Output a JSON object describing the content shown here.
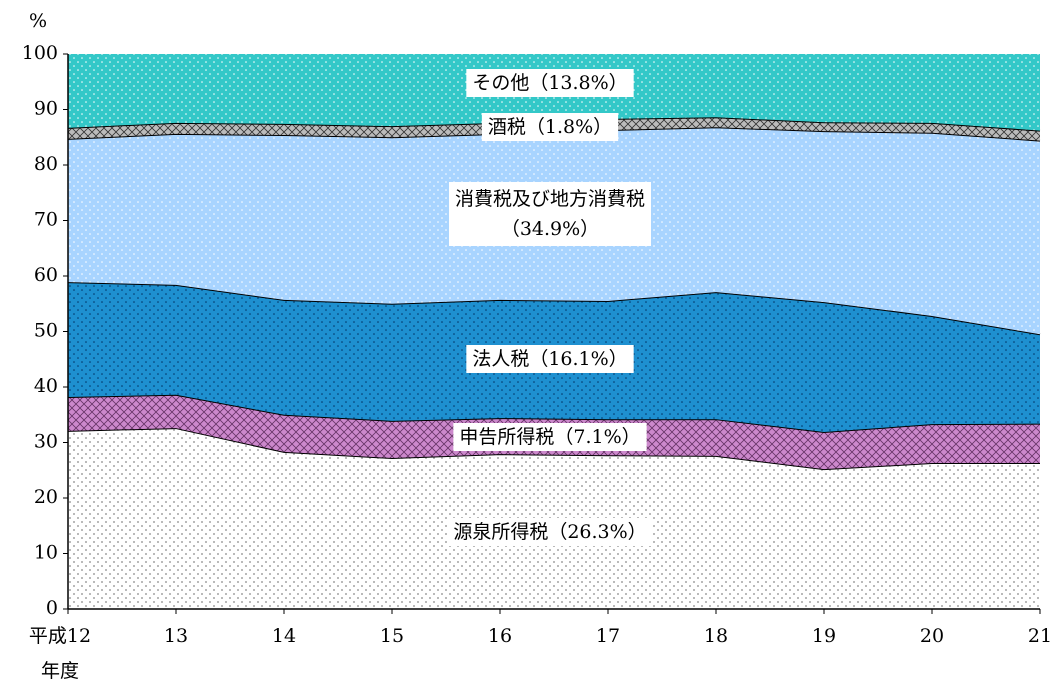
{
  "chart_data": {
    "type": "stacked_area",
    "y_label": "%",
    "x_label": "年度",
    "categories": [
      "平成12",
      "13",
      "14",
      "15",
      "16",
      "17",
      "18",
      "19",
      "20",
      "21"
    ],
    "series": [
      {
        "name": "源泉所得税",
        "color": "#ffffff",
        "values": [
          32.1,
          32.6,
          28.3,
          27.2,
          27.9,
          27.7,
          27.6,
          25.2,
          26.3,
          26.3
        ]
      },
      {
        "name": "申告所得税",
        "color": "#cc88cc",
        "values": [
          6.1,
          6.0,
          6.7,
          6.7,
          6.5,
          6.5,
          6.6,
          6.7,
          7.0,
          7.1
        ]
      },
      {
        "name": "法人税",
        "color": "#1e90d0",
        "values": [
          20.7,
          19.8,
          20.7,
          21.1,
          21.3,
          21.3,
          22.9,
          23.4,
          19.5,
          16.1
        ]
      },
      {
        "name": "消費税及び地方消費税",
        "color": "#a8d4ff",
        "values": [
          25.8,
          27.2,
          29.7,
          30.0,
          29.9,
          30.8,
          29.7,
          30.8,
          33.0,
          34.9
        ]
      },
      {
        "name": "酒税",
        "color": "#bbbbbb",
        "values": [
          2.0,
          2.0,
          2.0,
          2.0,
          2.0,
          2.0,
          1.8,
          1.6,
          1.8,
          1.8
        ]
      },
      {
        "name": "その他",
        "color": "#33c8c8",
        "values": [
          13.3,
          12.4,
          12.6,
          13.0,
          12.4,
          11.7,
          11.4,
          12.3,
          12.4,
          13.8
        ]
      }
    ],
    "annotations": [
      "源泉所得税（26.3%）",
      "申告所得税（7.1%）",
      "法人税（16.1%）",
      "消費税及び地方消費税",
      "（34.9%）",
      "酒税（1.8%）",
      "その他（13.8%）"
    ],
    "ylim": [
      0,
      100
    ],
    "yticks": [
      0,
      10,
      20,
      30,
      40,
      50,
      60,
      70,
      80,
      90,
      100
    ]
  }
}
